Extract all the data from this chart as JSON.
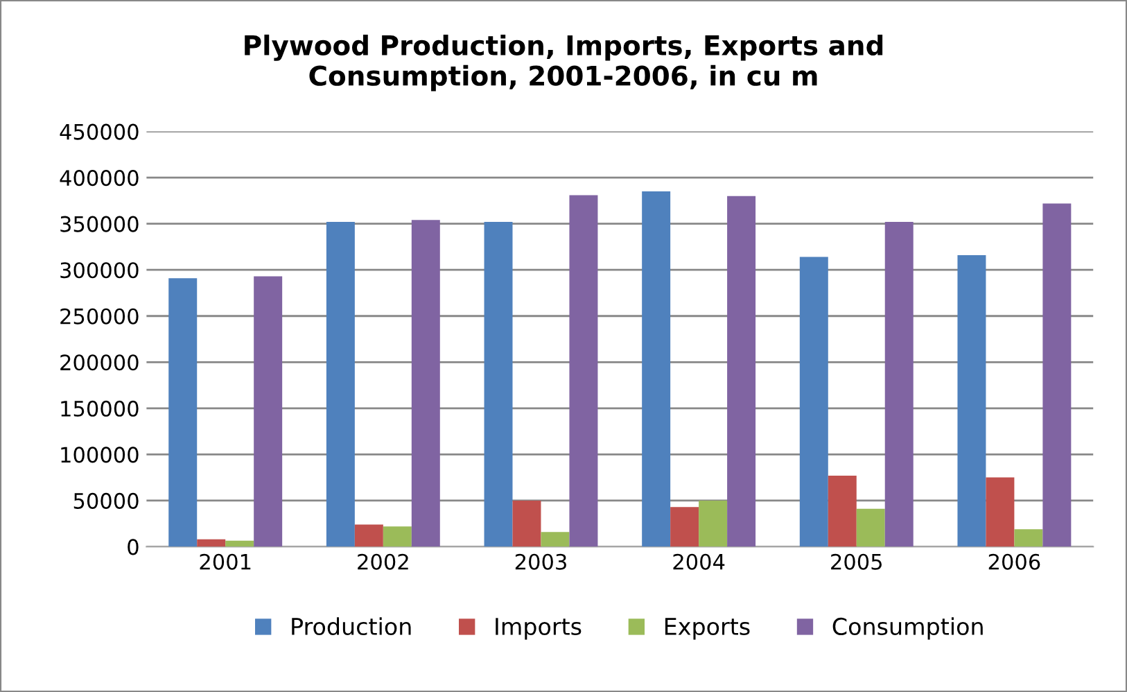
{
  "chart_data": {
    "type": "bar",
    "title": "Plywood Production, Imports, Exports and\nConsumption, 2001-2006, in cu m",
    "categories": [
      "2001",
      "2002",
      "2003",
      "2004",
      "2005",
      "2006"
    ],
    "series": [
      {
        "name": "Production",
        "color": "#4f81bd",
        "values": [
          291000,
          352000,
          352000,
          385000,
          314000,
          316000
        ]
      },
      {
        "name": "Imports",
        "color": "#c0504d",
        "values": [
          8000,
          24000,
          50000,
          43000,
          77000,
          75000
        ]
      },
      {
        "name": "Exports",
        "color": "#9bbb59",
        "values": [
          6500,
          22000,
          16000,
          50000,
          41000,
          19000
        ]
      },
      {
        "name": "Consumption",
        "color": "#8064a2",
        "values": [
          293000,
          354000,
          381000,
          380000,
          352000,
          372000
        ]
      }
    ],
    "ylim": [
      0,
      450000
    ],
    "yticks": [
      0,
      50000,
      100000,
      150000,
      200000,
      250000,
      300000,
      350000,
      400000,
      450000
    ],
    "grid": "y",
    "legend": "bottom"
  }
}
